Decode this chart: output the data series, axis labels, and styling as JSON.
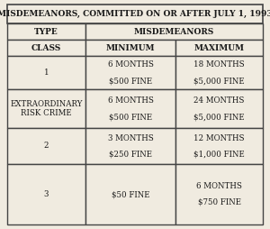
{
  "title": "MISDEMEANORS, COMMITTED ON OR AFTER JULY 1, 1993",
  "rows": [
    {
      "class": "1",
      "min_line1": "6 MONTHS",
      "min_line2": "$500 FINE",
      "max_line1": "18 MONTHS",
      "max_line2": "$5,000 FINE"
    },
    {
      "class": "EXTRAORDINARY\nRISK CRIME",
      "min_line1": "6 MONTHS",
      "min_line2": "$500 FINE",
      "max_line1": "24 MONTHS",
      "max_line2": "$5,000 FINE"
    },
    {
      "class": "2",
      "min_line1": "3 MONTHS",
      "min_line2": "$250 FINE",
      "max_line1": "12 MONTHS",
      "max_line2": "$1,000 FINE"
    },
    {
      "class": "3",
      "min_line1": "$50 FINE",
      "min_line2": "",
      "max_line1": "6 MONTHS",
      "max_line2": "$750 FINE"
    }
  ],
  "bg_color": "#f0ebe0",
  "line_color": "#444444",
  "text_color": "#1a1a1a",
  "font_size": 6.2,
  "title_font_size": 6.5,
  "header_font_size": 6.5
}
